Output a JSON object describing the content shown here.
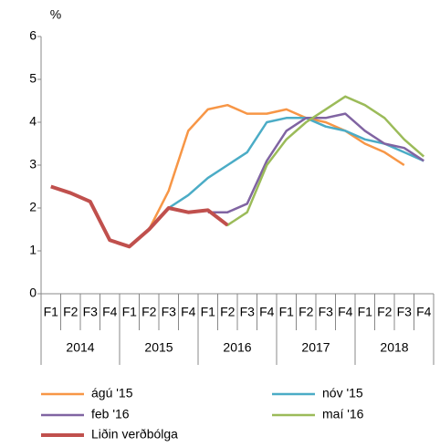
{
  "chart_data": {
    "type": "line",
    "y_label": "%",
    "categories": [
      "F1",
      "F2",
      "F3",
      "F4",
      "F1",
      "F2",
      "F3",
      "F4",
      "F1",
      "F2",
      "F3",
      "F4",
      "F1",
      "F2",
      "F3",
      "F4",
      "F1",
      "F2",
      "F3",
      "F4"
    ],
    "category_groups": [
      "2014",
      "2015",
      "2016",
      "2017",
      "2018"
    ],
    "ylim": [
      0,
      6
    ],
    "yticks": [
      0,
      1,
      2,
      3,
      4,
      5,
      6
    ],
    "grid": false,
    "series": [
      {
        "name": "ágú '15",
        "color": "#f79646",
        "width": 2.5,
        "values": [
          null,
          null,
          null,
          null,
          null,
          1.5,
          2.4,
          3.8,
          4.3,
          4.4,
          4.2,
          4.2,
          4.3,
          4.1,
          4.0,
          3.8,
          3.5,
          3.3,
          3.0,
          null
        ]
      },
      {
        "name": "nóv '15",
        "color": "#4bacc6",
        "width": 2.5,
        "values": [
          null,
          null,
          null,
          null,
          null,
          null,
          2.0,
          2.3,
          2.7,
          3.0,
          3.3,
          4.0,
          4.1,
          4.1,
          3.9,
          3.8,
          3.6,
          3.5,
          3.3,
          3.1
        ]
      },
      {
        "name": "feb '16",
        "color": "#8064a2",
        "width": 2.5,
        "values": [
          null,
          null,
          null,
          null,
          null,
          null,
          null,
          null,
          1.9,
          1.9,
          2.1,
          3.1,
          3.8,
          4.1,
          4.1,
          4.2,
          3.8,
          3.5,
          3.4,
          3.1
        ]
      },
      {
        "name": "maí '16",
        "color": "#9bbb59",
        "width": 2.5,
        "values": [
          null,
          null,
          null,
          null,
          null,
          null,
          null,
          null,
          1.95,
          1.6,
          1.9,
          3.0,
          3.6,
          4.0,
          4.3,
          4.6,
          4.4,
          4.1,
          3.6,
          3.2
        ]
      },
      {
        "name": "Liðin verðbólga",
        "color": "#c0504d",
        "width": 4,
        "values": [
          2.5,
          2.35,
          2.15,
          1.25,
          1.1,
          1.5,
          2.0,
          1.9,
          1.95,
          1.6,
          null,
          null,
          null,
          null,
          null,
          null,
          null,
          null,
          null,
          null
        ]
      }
    ]
  }
}
